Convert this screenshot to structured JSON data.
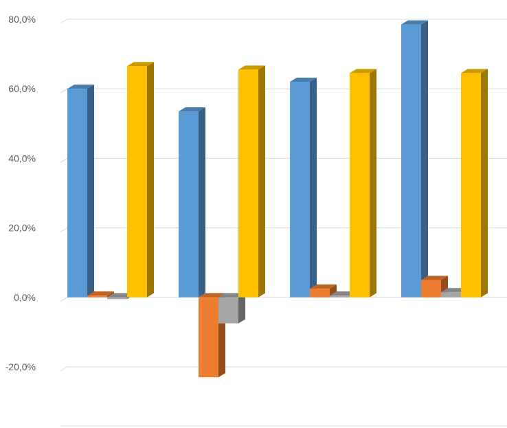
{
  "chart_data": {
    "type": "bar",
    "style": "3d-clustered-column",
    "categories": [
      "",
      "",
      "",
      ""
    ],
    "series": [
      {
        "values": [
          60.0,
          53.5,
          62.0,
          78.5
        ],
        "color": "#5B9BD5"
      },
      {
        "values": [
          0.5,
          -23.0,
          2.5,
          5.0
        ],
        "color": "#ED7D31"
      },
      {
        "values": [
          -0.5,
          -7.5,
          0.5,
          1.5
        ],
        "color": "#A5A5A5"
      },
      {
        "values": [
          66.5,
          65.5,
          64.5,
          64.5
        ],
        "color": "#FFC000"
      }
    ],
    "ylim": [
      -20,
      80
    ],
    "yticks": [
      "80,0%",
      "60,0%",
      "40,0%",
      "20,0%",
      "0,0%",
      "-20,0%"
    ],
    "ytick_values": [
      80,
      60,
      40,
      20,
      0,
      -20
    ],
    "grid": true,
    "legend": "none"
  }
}
